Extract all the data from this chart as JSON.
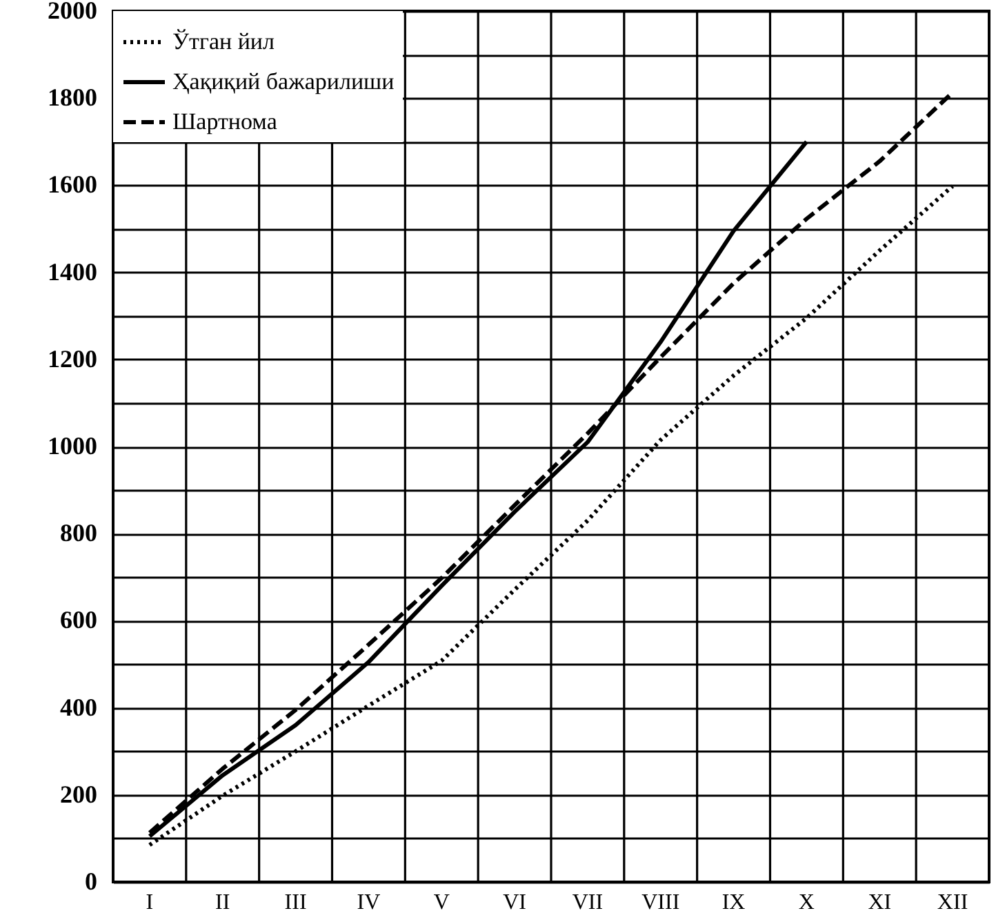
{
  "chart_data": {
    "type": "line",
    "categories": [
      "I",
      "II",
      "III",
      "IV",
      "V",
      "VI",
      "VII",
      "VIII",
      "IX",
      "X",
      "XI",
      "XII"
    ],
    "ylim": [
      0,
      2000
    ],
    "yticks": [
      0,
      {
        "value": 100,
        "label": null
      },
      200,
      {
        "value": 300,
        "label": null
      },
      400,
      {
        "value": 500,
        "label": null
      },
      600,
      {
        "value": 700,
        "label": null
      },
      800,
      {
        "value": 900,
        "label": null
      },
      1000,
      {
        "value": 1100,
        "label": null
      },
      1200,
      {
        "value": 1300,
        "label": null
      },
      1400,
      {
        "value": 1500,
        "label": null
      },
      1600,
      {
        "value": 1700,
        "label": null
      },
      1800,
      {
        "value": 1900,
        "label": null
      },
      2000
    ],
    "grid": true,
    "legend": "top left",
    "series": [
      {
        "name": "Ўтган йил",
        "color": "#000000",
        "line_style": "dotted",
        "values": [
          85,
          198,
          300,
          405,
          508,
          671,
          830,
          1015,
          1163,
          1295,
          1450,
          1598
        ]
      },
      {
        "name": "Ҳақиқий бажарилиши",
        "color": "#000000",
        "line_style": "solid",
        "values": [
          105,
          245,
          360,
          505,
          680,
          850,
          1010,
          1240,
          1495,
          1700,
          null,
          null
        ]
      },
      {
        "name": "Шартнома",
        "color": "#000000",
        "line_style": "dashed",
        "values": [
          113,
          260,
          395,
          545,
          698,
          865,
          1030,
          1205,
          1375,
          1523,
          1655,
          1813
        ]
      }
    ]
  }
}
